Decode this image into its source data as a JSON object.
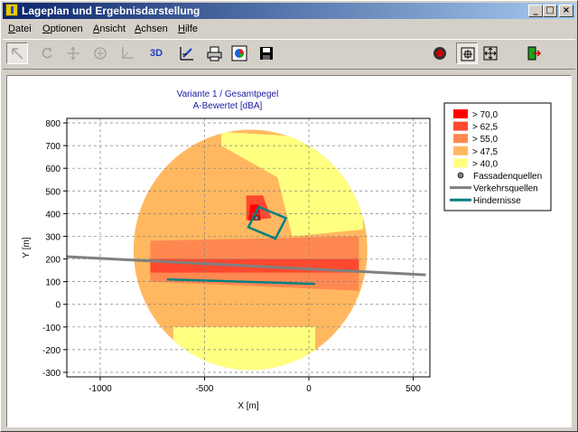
{
  "window": {
    "title": "Lageplan und Ergebnisdarstellung",
    "min_glyph": "_",
    "max_glyph": "□",
    "close_glyph": "×"
  },
  "menu": [
    {
      "label": "Datei",
      "hotkey": "D",
      "rest": "atei"
    },
    {
      "label": "Optionen",
      "hotkey": "O",
      "rest": "ptionen"
    },
    {
      "label": "Ansicht",
      "hotkey": "A",
      "rest": "nsicht"
    },
    {
      "label": "Achsen",
      "hotkey": "A",
      "rest": "chsen"
    },
    {
      "label": "Hilfe",
      "hotkey": "H",
      "rest": "ilfe"
    }
  ],
  "toolbar": {
    "tools": [
      "select-icon",
      "rotate-icon",
      "move-icon",
      "zoom-icon",
      "axes-icon"
    ],
    "btn_3d": "3D",
    "tools2": [
      "edit-icon",
      "print-icon",
      "color-icon",
      "save-icon"
    ],
    "tools3": [
      "record-icon",
      "zoom-fit-icon",
      "pan-icon",
      "exit-icon"
    ]
  },
  "chart_data": {
    "type": "heatmap",
    "title": "Variante 1 / Gesamtpegel",
    "subtitle": "A-Bewertet [dBA]",
    "xlabel": "X [m]",
    "ylabel": "Y [m]",
    "xlim": [
      -1160,
      580
    ],
    "ylim": [
      -320,
      820
    ],
    "xticks": [
      -1000,
      -500,
      0,
      500
    ],
    "yticks": [
      800,
      700,
      600,
      500,
      400,
      300,
      200,
      100,
      0,
      -100,
      -200,
      -300
    ],
    "grid": true,
    "legend_position": "right",
    "legend": [
      {
        "label": "> 70,0",
        "kind": "swatch",
        "color": "#ff0000"
      },
      {
        "label": "> 62,5",
        "kind": "swatch",
        "color": "#ff4830"
      },
      {
        "label": "> 55,0",
        "kind": "swatch",
        "color": "#ff8850"
      },
      {
        "label": "> 47,5",
        "kind": "swatch",
        "color": "#ffb860"
      },
      {
        "label": "> 40,0",
        "kind": "swatch",
        "color": "#ffff80"
      },
      {
        "label": "Fassadenquellen",
        "kind": "dot",
        "color": "#808080"
      },
      {
        "label": "Verkehrsquellen",
        "kind": "line",
        "color": "#808080"
      },
      {
        "label": "Hindernisse",
        "kind": "line",
        "color": "#008080"
      }
    ],
    "calc_area": {
      "center": [
        -280,
        240
      ],
      "rx": 560,
      "ry": 530
    },
    "zones": [
      {
        "level": "> 40,0",
        "polygon": [
          [
            -420,
            760
          ],
          [
            -30,
            740
          ],
          [
            120,
            650
          ],
          [
            260,
            500
          ],
          [
            260,
            330
          ],
          [
            -80,
            300
          ],
          [
            -150,
            560
          ],
          [
            -420,
            700
          ]
        ]
      },
      {
        "level": "> 40,0",
        "polygon": [
          [
            -650,
            -100
          ],
          [
            30,
            -100
          ],
          [
            30,
            -300
          ],
          [
            -650,
            -300
          ]
        ]
      },
      {
        "level": "> 55,0",
        "polygon": [
          [
            -760,
            280
          ],
          [
            240,
            300
          ],
          [
            240,
            60
          ],
          [
            -760,
            100
          ]
        ]
      },
      {
        "level": "> 62,5",
        "polygon": [
          [
            -760,
            200
          ],
          [
            240,
            200
          ],
          [
            240,
            140
          ],
          [
            -760,
            140
          ]
        ]
      },
      {
        "level": "> 62,5",
        "polygon": [
          [
            -300,
            480
          ],
          [
            -220,
            480
          ],
          [
            -180,
            380
          ],
          [
            -300,
            370
          ]
        ]
      },
      {
        "level": "> 70,0",
        "polygon": [
          [
            -280,
            440
          ],
          [
            -240,
            440
          ],
          [
            -230,
            370
          ],
          [
            -290,
            370
          ]
        ]
      }
    ],
    "traffic_sources": [
      {
        "points": [
          [
            -1160,
            210
          ],
          [
            560,
            130
          ]
        ]
      }
    ],
    "obstacles": [
      {
        "points": [
          [
            -680,
            110
          ],
          [
            30,
            90
          ]
        ]
      },
      {
        "points": [
          [
            -240,
            430
          ],
          [
            -110,
            380
          ],
          [
            -160,
            290
          ],
          [
            -290,
            340
          ]
        ],
        "closed": true
      }
    ],
    "facade_sources": [
      {
        "point": [
          -250,
          380
        ]
      }
    ]
  }
}
